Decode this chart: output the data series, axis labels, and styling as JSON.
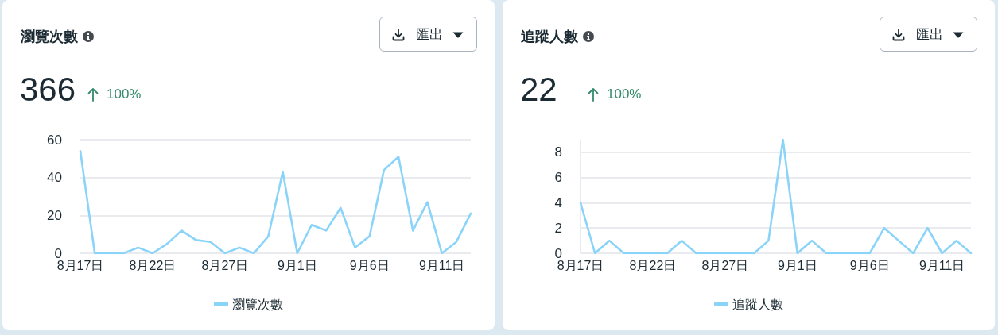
{
  "chart_data": [
    {
      "type": "line",
      "title": "瀏覽次數",
      "annotations": [
        "366",
        "100%",
        "匯出"
      ],
      "categories": [
        "8月17日",
        null,
        null,
        null,
        null,
        "8月22日",
        null,
        null,
        null,
        null,
        "8月27日",
        null,
        null,
        null,
        null,
        "9月1日",
        null,
        null,
        null,
        null,
        "9月6日",
        null,
        null,
        null,
        null,
        "9月11日",
        null,
        null
      ],
      "series": [
        {
          "name": "瀏覽次數",
          "color": "#8bd4f9",
          "values": [
            54,
            0,
            0,
            0,
            3,
            0,
            5,
            12,
            7,
            6,
            0,
            3,
            0,
            9,
            43,
            0,
            15,
            12,
            24,
            3,
            9,
            44,
            51,
            12,
            27,
            0,
            6,
            21
          ]
        }
      ],
      "ylim": [
        0,
        60
      ],
      "yticks": [
        0,
        20,
        40,
        60
      ],
      "grid": "y",
      "legend": "bottom",
      "marker": "none"
    },
    {
      "type": "line",
      "title": "追蹤人數",
      "annotations": [
        "22",
        "100%",
        "匯出"
      ],
      "categories": [
        "8月17日",
        null,
        null,
        null,
        null,
        "8月22日",
        null,
        null,
        null,
        null,
        "8月27日",
        null,
        null,
        null,
        null,
        "9月1日",
        null,
        null,
        null,
        null,
        "9月6日",
        null,
        null,
        null,
        null,
        "9月11日",
        null,
        null
      ],
      "series": [
        {
          "name": "追蹤人數",
          "color": "#8bd4f9",
          "values": [
            4,
            0,
            1,
            0,
            0,
            0,
            0,
            1,
            0,
            0,
            0,
            0,
            0,
            1,
            9,
            0,
            1,
            0,
            0,
            0,
            0,
            2,
            1,
            0,
            2,
            0,
            1,
            0
          ]
        }
      ],
      "ylim": [
        0,
        9
      ],
      "yticks": [
        0,
        2,
        4,
        6,
        8
      ],
      "grid": "y",
      "legend": "bottom",
      "marker": "none"
    }
  ]
}
